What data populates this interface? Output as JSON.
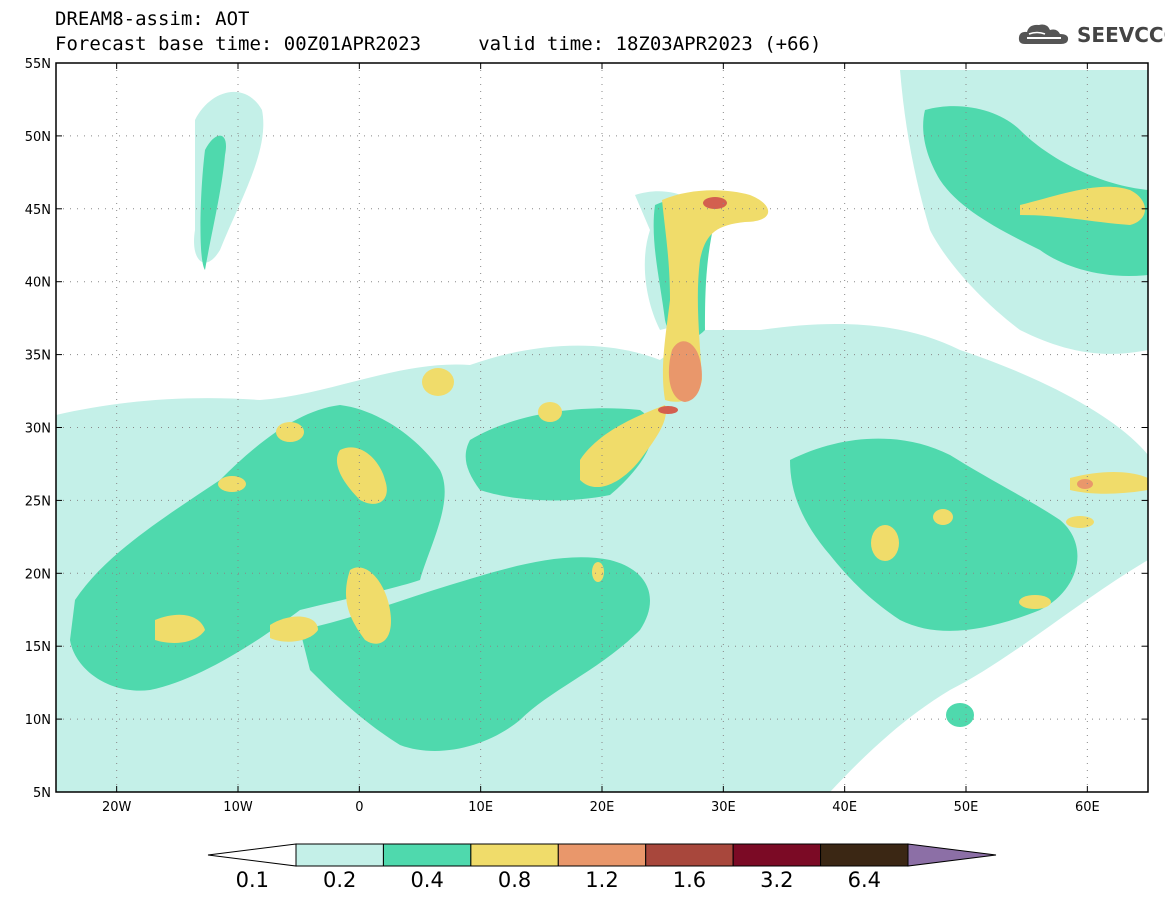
{
  "header": {
    "line1": "DREAM8-assim: AOT",
    "line2": "Forecast base time: 00Z01APR2023     valid time: 18Z03APR2023 (+66)"
  },
  "logo": {
    "text": "SEEVCCC",
    "icon": "cloud-icon"
  },
  "map": {
    "lon_range": [
      -25,
      65
    ],
    "lat_range": [
      5,
      55
    ],
    "lon_ticks": [
      {
        "value": -20,
        "label": "20W"
      },
      {
        "value": -10,
        "label": "10W"
      },
      {
        "value": 0,
        "label": "0"
      },
      {
        "value": 10,
        "label": "10E"
      },
      {
        "value": 20,
        "label": "20E"
      },
      {
        "value": 30,
        "label": "30E"
      },
      {
        "value": 40,
        "label": "40E"
      },
      {
        "value": 50,
        "label": "50E"
      },
      {
        "value": 60,
        "label": "60E"
      }
    ],
    "lat_ticks": [
      {
        "value": 55,
        "label": "55N"
      },
      {
        "value": 50,
        "label": "50N"
      },
      {
        "value": 45,
        "label": "45N"
      },
      {
        "value": 40,
        "label": "40N"
      },
      {
        "value": 35,
        "label": "35N"
      },
      {
        "value": 30,
        "label": "30N"
      },
      {
        "value": 25,
        "label": "25N"
      },
      {
        "value": 20,
        "label": "20N"
      },
      {
        "value": 15,
        "label": "15N"
      },
      {
        "value": 10,
        "label": "10N"
      },
      {
        "value": 5,
        "label": "5N"
      }
    ],
    "grid": "dotted"
  },
  "colorbar": {
    "under_color": "#ffffff",
    "over_color": "#8c6fa6",
    "bins": [
      {
        "color": "#c4f0e8"
      },
      {
        "color": "#4fd9ad"
      },
      {
        "color": "#f0dc6a"
      },
      {
        "color": "#e9976b"
      },
      {
        "color": "#a8473c"
      },
      {
        "color": "#7b0a25"
      },
      {
        "color": "#3b2714"
      }
    ],
    "labels": [
      "0.1",
      "0.2",
      "0.4",
      "0.8",
      "1.2",
      "1.6",
      "3.2",
      "6.4"
    ]
  },
  "colors": {
    "c1": "#c4f0e8",
    "c2": "#4fd9ad",
    "c3": "#f0dc6a",
    "c4": "#e9976b",
    "c5": "#d35f4f"
  }
}
